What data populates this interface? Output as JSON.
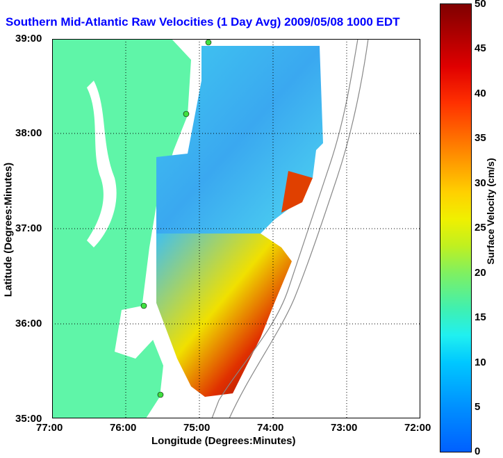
{
  "title": "Southern Mid-Atlantic Raw Velocities (1 Day Avg) 2009/05/08 1000 EDT",
  "x_axis": {
    "label": "Longitude (Degrees:Minutes)",
    "ticks": [
      "77:00",
      "76:00",
      "75:00",
      "74:00",
      "73:00",
      "72:00"
    ]
  },
  "y_axis": {
    "label": "Latitude (Degrees:Minutes)",
    "ticks": [
      "39:00",
      "38:00",
      "37:00",
      "36:00",
      "35:00"
    ]
  },
  "colorbar": {
    "label": "Surface Velocity (cm/s)",
    "ticks": [
      "50",
      "45",
      "40",
      "35",
      "30",
      "25",
      "20",
      "15",
      "10",
      "5",
      "0"
    ],
    "range": [
      0,
      50
    ]
  },
  "colors": {
    "land": "#5ff5a8",
    "water": "#ffffff",
    "title": "#0000ff"
  }
}
